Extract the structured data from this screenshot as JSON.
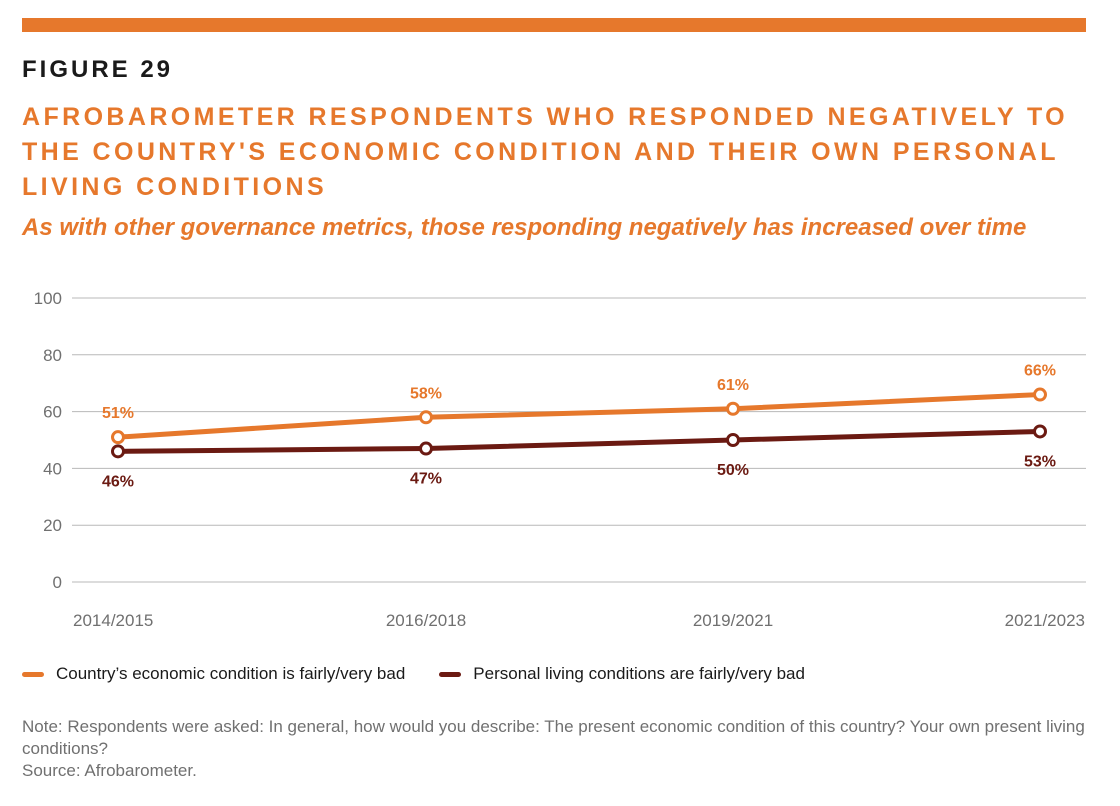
{
  "figure_label": "FIGURE 29",
  "title": "AFROBAROMETER RESPONDENTS WHO RESPONDED NEGATIVELY TO THE COUNTRY'S ECONOMIC CONDITION AND THEIR OWN PERSONAL LIVING CONDITIONS",
  "subtitle": "As with other governance metrics, those responding negatively has increased over time",
  "colors": {
    "accent": "#e6782c",
    "series_economic": "#e6782c",
    "series_personal": "#6b1a12",
    "grid": "#b8b8b8",
    "tick_text": "#707070"
  },
  "chart_data": {
    "type": "line",
    "x": [
      "2014/2015",
      "2016/2018",
      "2019/2021",
      "2021/2023"
    ],
    "ylim": [
      0,
      100
    ],
    "yticks": [
      0,
      20,
      40,
      60,
      80,
      100
    ],
    "grid": true,
    "legend_position": "bottom-left",
    "series": [
      {
        "name": "Country’s economic condition is fairly/very bad",
        "values": [
          51,
          58,
          61,
          66
        ],
        "labels": [
          "51%",
          "58%",
          "61%",
          "66%"
        ],
        "label_position": "above"
      },
      {
        "name": "Personal living conditions are fairly/very bad",
        "values": [
          46,
          47,
          50,
          53
        ],
        "labels": [
          "46%",
          "47%",
          "50%",
          "53%"
        ],
        "label_position": "below"
      }
    ]
  },
  "note": "Note: Respondents were asked: In general, how would you describe: The present economic condition of this country? Your own present living conditions?",
  "source": "Source: Afrobarometer."
}
